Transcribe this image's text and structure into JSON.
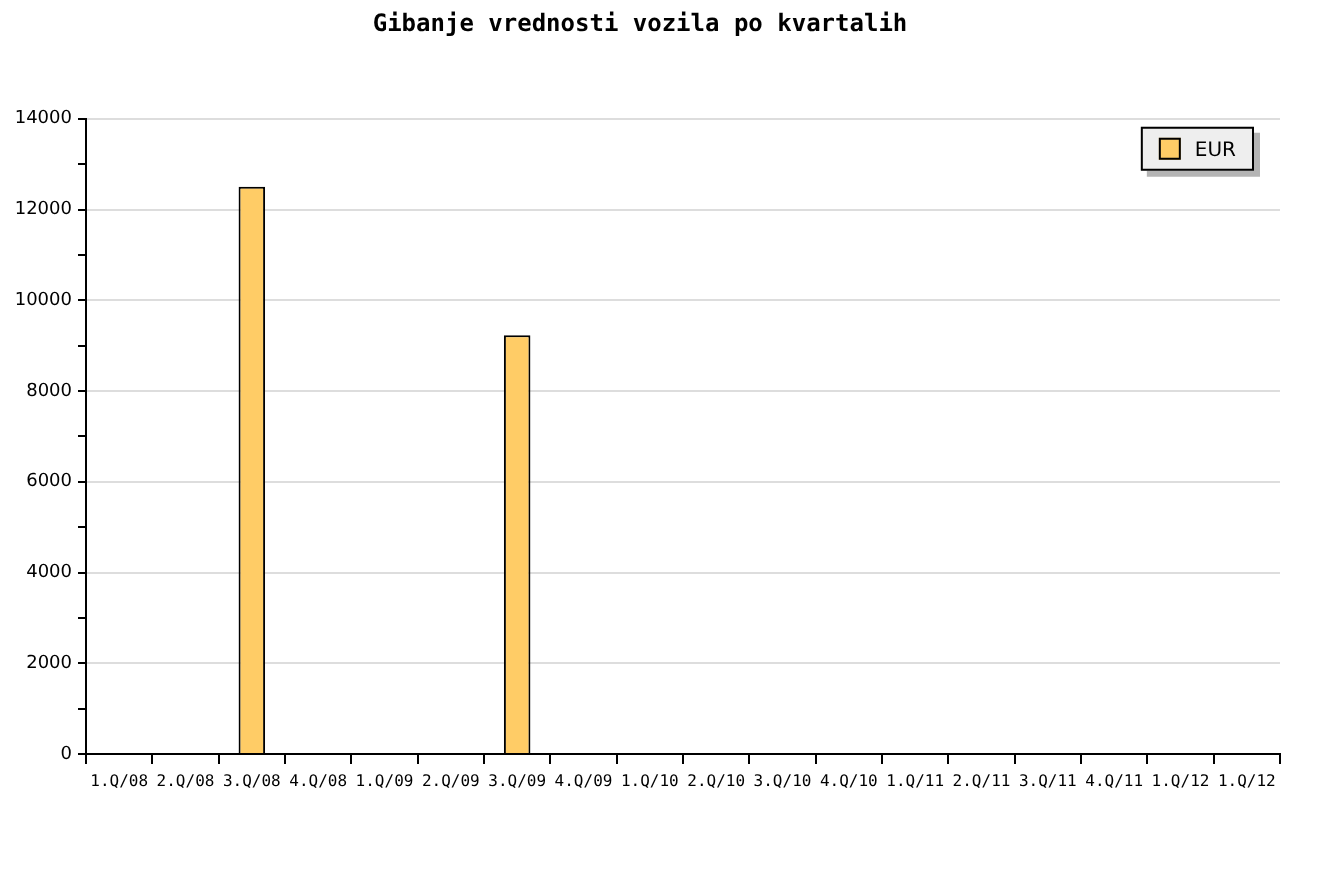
{
  "chart_data": {
    "type": "bar",
    "title": "Gibanje vrednosti vozila po kvartalih",
    "categories": [
      "1.Q/08",
      "2.Q/08",
      "3.Q/08",
      "4.Q/08",
      "1.Q/09",
      "2.Q/09",
      "3.Q/09",
      "4.Q/09",
      "1.Q/10",
      "2.Q/10",
      "3.Q/10",
      "4.Q/10",
      "1.Q/11",
      "2.Q/11",
      "3.Q/11",
      "4.Q/11",
      "1.Q/12",
      "1.Q/12"
    ],
    "series": [
      {
        "name": "EUR",
        "color": "#ffcc66",
        "values": [
          null,
          null,
          12500,
          null,
          null,
          null,
          9230,
          null,
          null,
          null,
          null,
          null,
          null,
          null,
          null,
          null,
          null,
          null
        ]
      }
    ],
    "ylim": [
      0,
      14000
    ],
    "yticks": [
      0,
      {
        "value": 1000,
        "label": null
      },
      2000,
      {
        "value": 3000,
        "label": null
      },
      4000,
      {
        "value": 5000,
        "label": null
      },
      6000,
      {
        "value": 7000,
        "label": null
      },
      8000,
      {
        "value": 9000,
        "label": null
      },
      10000,
      {
        "value": 11000,
        "label": null
      },
      12000,
      {
        "value": 13000,
        "label": null
      },
      14000
    ],
    "grid": "y",
    "legend": "top right"
  }
}
